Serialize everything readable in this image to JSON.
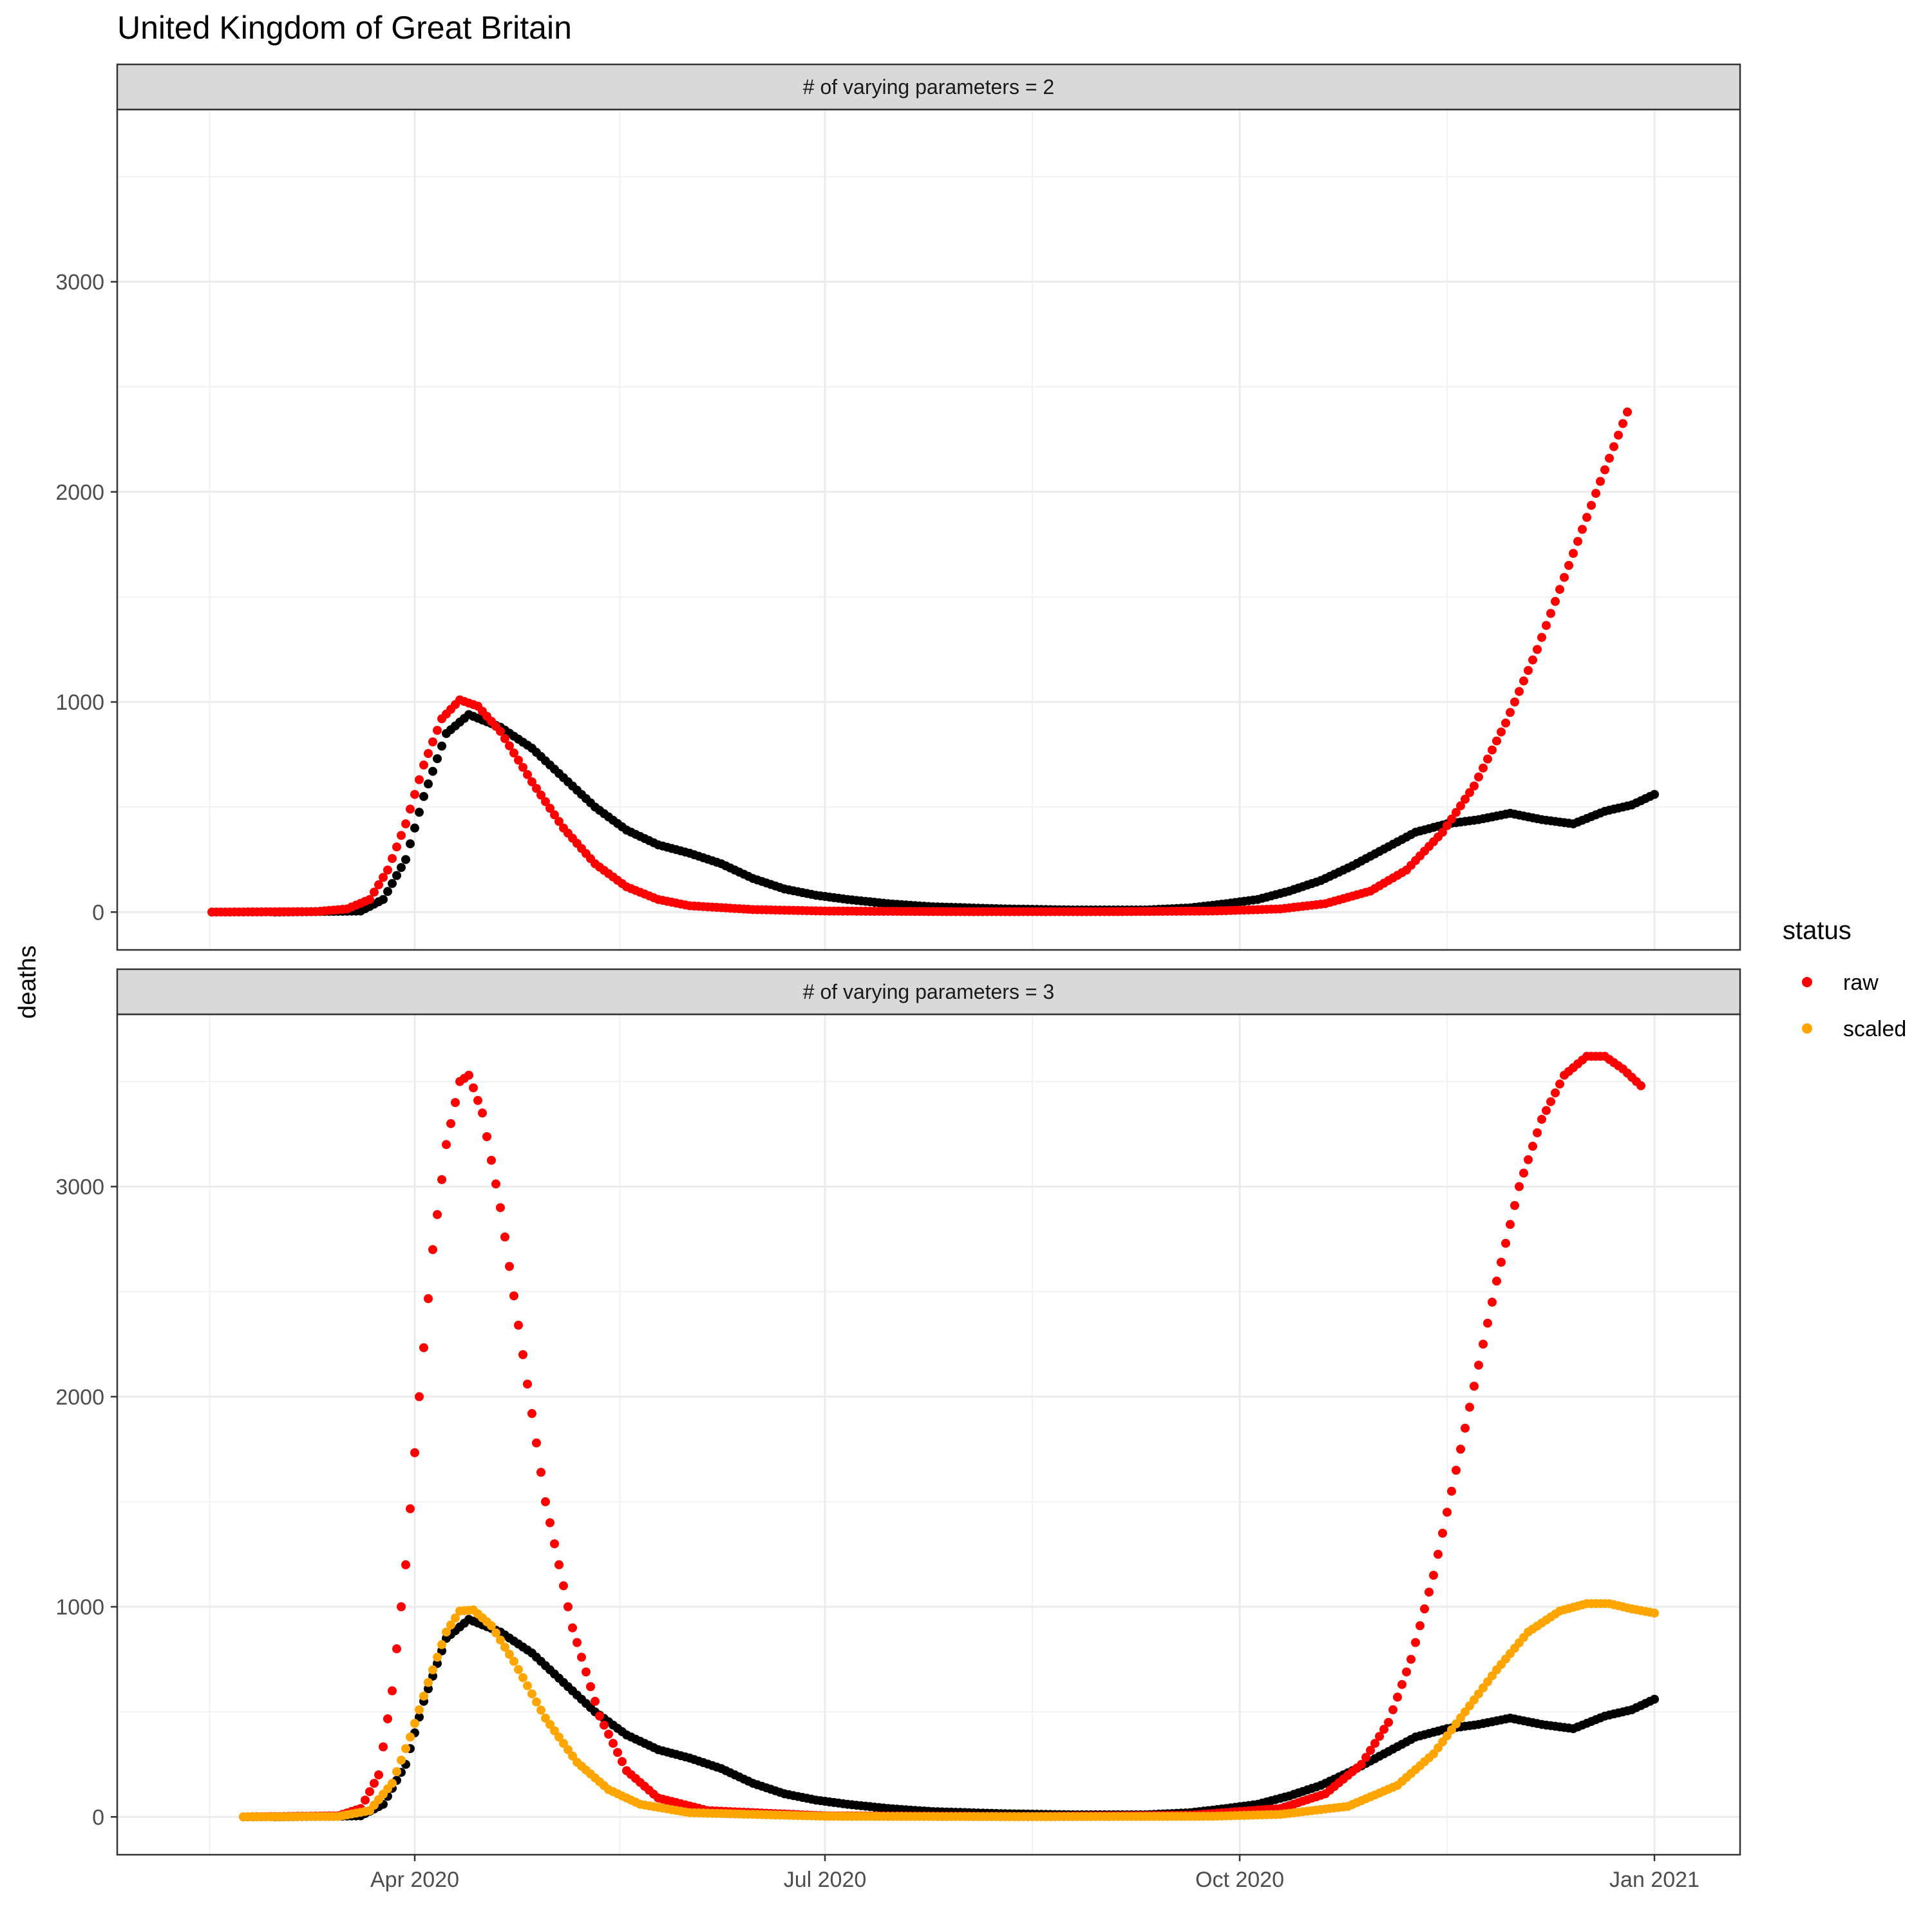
{
  "chart_data": {
    "type": "scatter",
    "title": "United Kingdom of Great Britain",
    "xlabel": "",
    "ylabel": "deaths",
    "x_range": [
      "2020-01-26",
      "2021-01-20"
    ],
    "y_range": [
      -180,
      3820
    ],
    "x_ticks": [
      {
        "date": "2020-04-01",
        "label": "Apr 2020"
      },
      {
        "date": "2020-07-01",
        "label": "Jul 2020"
      },
      {
        "date": "2020-10-01",
        "label": "Oct 2020"
      },
      {
        "date": "2021-01-01",
        "label": "Jan 2021"
      }
    ],
    "y_ticks": [
      0,
      1000,
      2000,
      3000
    ],
    "grid": true,
    "legend": {
      "title": "status",
      "position": "right",
      "entries": [
        {
          "label": "raw",
          "color": "#ff0000"
        },
        {
          "label": "scaled",
          "color": "#ffa500"
        }
      ]
    },
    "observed_color": "#000000",
    "observed_series": {
      "points": [
        [
          "2020-03-01",
          0
        ],
        [
          "2020-03-20",
          5
        ],
        [
          "2020-03-25",
          60
        ],
        [
          "2020-03-30",
          250
        ],
        [
          "2020-04-03",
          550
        ],
        [
          "2020-04-08",
          850
        ],
        [
          "2020-04-13",
          940
        ],
        [
          "2020-04-20",
          880
        ],
        [
          "2020-04-27",
          780
        ],
        [
          "2020-05-04",
          640
        ],
        [
          "2020-05-11",
          500
        ],
        [
          "2020-05-18",
          390
        ],
        [
          "2020-05-25",
          320
        ],
        [
          "2020-06-01",
          280
        ],
        [
          "2020-06-08",
          230
        ],
        [
          "2020-06-15",
          160
        ],
        [
          "2020-06-22",
          110
        ],
        [
          "2020-06-29",
          80
        ],
        [
          "2020-07-06",
          60
        ],
        [
          "2020-07-15",
          40
        ],
        [
          "2020-07-25",
          25
        ],
        [
          "2020-08-10",
          15
        ],
        [
          "2020-08-25",
          10
        ],
        [
          "2020-09-10",
          10
        ],
        [
          "2020-09-20",
          20
        ],
        [
          "2020-09-28",
          40
        ],
        [
          "2020-10-05",
          60
        ],
        [
          "2020-10-12",
          100
        ],
        [
          "2020-10-19",
          150
        ],
        [
          "2020-10-26",
          220
        ],
        [
          "2020-11-02",
          300
        ],
        [
          "2020-11-09",
          380
        ],
        [
          "2020-11-16",
          420
        ],
        [
          "2020-11-23",
          440
        ],
        [
          "2020-11-30",
          470
        ],
        [
          "2020-12-07",
          440
        ],
        [
          "2020-12-14",
          420
        ],
        [
          "2020-12-21",
          480
        ],
        [
          "2020-12-27",
          510
        ],
        [
          "2021-01-01",
          560
        ]
      ]
    },
    "panels": [
      {
        "strip": "# of varying parameters = 2",
        "series": [
          {
            "name": "raw",
            "color": "#ff0000",
            "points": [
              [
                "2020-02-16",
                0
              ],
              [
                "2020-03-10",
                2
              ],
              [
                "2020-03-17",
                15
              ],
              [
                "2020-03-22",
                60
              ],
              [
                "2020-03-26",
                200
              ],
              [
                "2020-03-30",
                420
              ],
              [
                "2020-04-03",
                700
              ],
              [
                "2020-04-07",
                920
              ],
              [
                "2020-04-11",
                1010
              ],
              [
                "2020-04-15",
                980
              ],
              [
                "2020-04-20",
                860
              ],
              [
                "2020-04-27",
                620
              ],
              [
                "2020-05-04",
                400
              ],
              [
                "2020-05-11",
                230
              ],
              [
                "2020-05-18",
                120
              ],
              [
                "2020-05-25",
                60
              ],
              [
                "2020-06-01",
                30
              ],
              [
                "2020-06-15",
                12
              ],
              [
                "2020-07-01",
                5
              ],
              [
                "2020-08-01",
                2
              ],
              [
                "2020-09-01",
                2
              ],
              [
                "2020-09-25",
                5
              ],
              [
                "2020-10-10",
                15
              ],
              [
                "2020-10-20",
                40
              ],
              [
                "2020-10-30",
                100
              ],
              [
                "2020-11-07",
                200
              ],
              [
                "2020-11-15",
                380
              ],
              [
                "2020-11-22",
                600
              ],
              [
                "2020-11-29",
                900
              ],
              [
                "2020-12-06",
                1250
              ],
              [
                "2020-12-13",
                1650
              ],
              [
                "2020-12-20",
                2050
              ],
              [
                "2020-12-26",
                2380
              ]
            ]
          }
        ]
      },
      {
        "strip": "# of varying parameters = 3",
        "series": [
          {
            "name": "raw",
            "color": "#ff0000",
            "points": [
              [
                "2020-02-23",
                0
              ],
              [
                "2020-03-15",
                5
              ],
              [
                "2020-03-20",
                40
              ],
              [
                "2020-03-24",
                200
              ],
              [
                "2020-03-27",
                600
              ],
              [
                "2020-03-30",
                1200
              ],
              [
                "2020-04-02",
                2000
              ],
              [
                "2020-04-05",
                2700
              ],
              [
                "2020-04-08",
                3200
              ],
              [
                "2020-04-11",
                3500
              ],
              [
                "2020-04-13",
                3530
              ],
              [
                "2020-04-16",
                3350
              ],
              [
                "2020-04-20",
                2900
              ],
              [
                "2020-04-25",
                2200
              ],
              [
                "2020-04-30",
                1500
              ],
              [
                "2020-05-06",
                900
              ],
              [
                "2020-05-12",
                480
              ],
              [
                "2020-05-18",
                220
              ],
              [
                "2020-05-25",
                90
              ],
              [
                "2020-06-05",
                30
              ],
              [
                "2020-07-01",
                5
              ],
              [
                "2020-08-15",
                2
              ],
              [
                "2020-09-20",
                8
              ],
              [
                "2020-10-10",
                40
              ],
              [
                "2020-10-20",
                110
              ],
              [
                "2020-10-28",
                250
              ],
              [
                "2020-11-03",
                450
              ],
              [
                "2020-11-08",
                750
              ],
              [
                "2020-11-13",
                1150
              ],
              [
                "2020-11-17",
                1550
              ],
              [
                "2020-11-22",
                2050
              ],
              [
                "2020-11-27",
                2550
              ],
              [
                "2020-12-02",
                3000
              ],
              [
                "2020-12-07",
                3320
              ],
              [
                "2020-12-12",
                3530
              ],
              [
                "2020-12-17",
                3620
              ],
              [
                "2020-12-21",
                3620
              ],
              [
                "2020-12-25",
                3560
              ],
              [
                "2020-12-29",
                3480
              ]
            ]
          },
          {
            "name": "scaled",
            "color": "#ffa500",
            "points": [
              [
                "2020-02-23",
                0
              ],
              [
                "2020-03-15",
                2
              ],
              [
                "2020-03-22",
                30
              ],
              [
                "2020-03-27",
                160
              ],
              [
                "2020-03-31",
                380
              ],
              [
                "2020-04-04",
                640
              ],
              [
                "2020-04-08",
                880
              ],
              [
                "2020-04-11",
                980
              ],
              [
                "2020-04-14",
                985
              ],
              [
                "2020-04-18",
                910
              ],
              [
                "2020-04-23",
                740
              ],
              [
                "2020-04-30",
                470
              ],
              [
                "2020-05-07",
                260
              ],
              [
                "2020-05-14",
                130
              ],
              [
                "2020-05-21",
                60
              ],
              [
                "2020-06-01",
                20
              ],
              [
                "2020-07-01",
                3
              ],
              [
                "2020-08-15",
                1
              ],
              [
                "2020-09-25",
                3
              ],
              [
                "2020-10-10",
                12
              ],
              [
                "2020-10-25",
                50
              ],
              [
                "2020-11-05",
                150
              ],
              [
                "2020-11-13",
                300
              ],
              [
                "2020-11-20",
                500
              ],
              [
                "2020-11-27",
                700
              ],
              [
                "2020-12-04",
                880
              ],
              [
                "2020-12-11",
                980
              ],
              [
                "2020-12-17",
                1015
              ],
              [
                "2020-12-22",
                1015
              ],
              [
                "2020-12-27",
                990
              ],
              [
                "2021-01-01",
                970
              ]
            ]
          }
        ]
      }
    ]
  }
}
